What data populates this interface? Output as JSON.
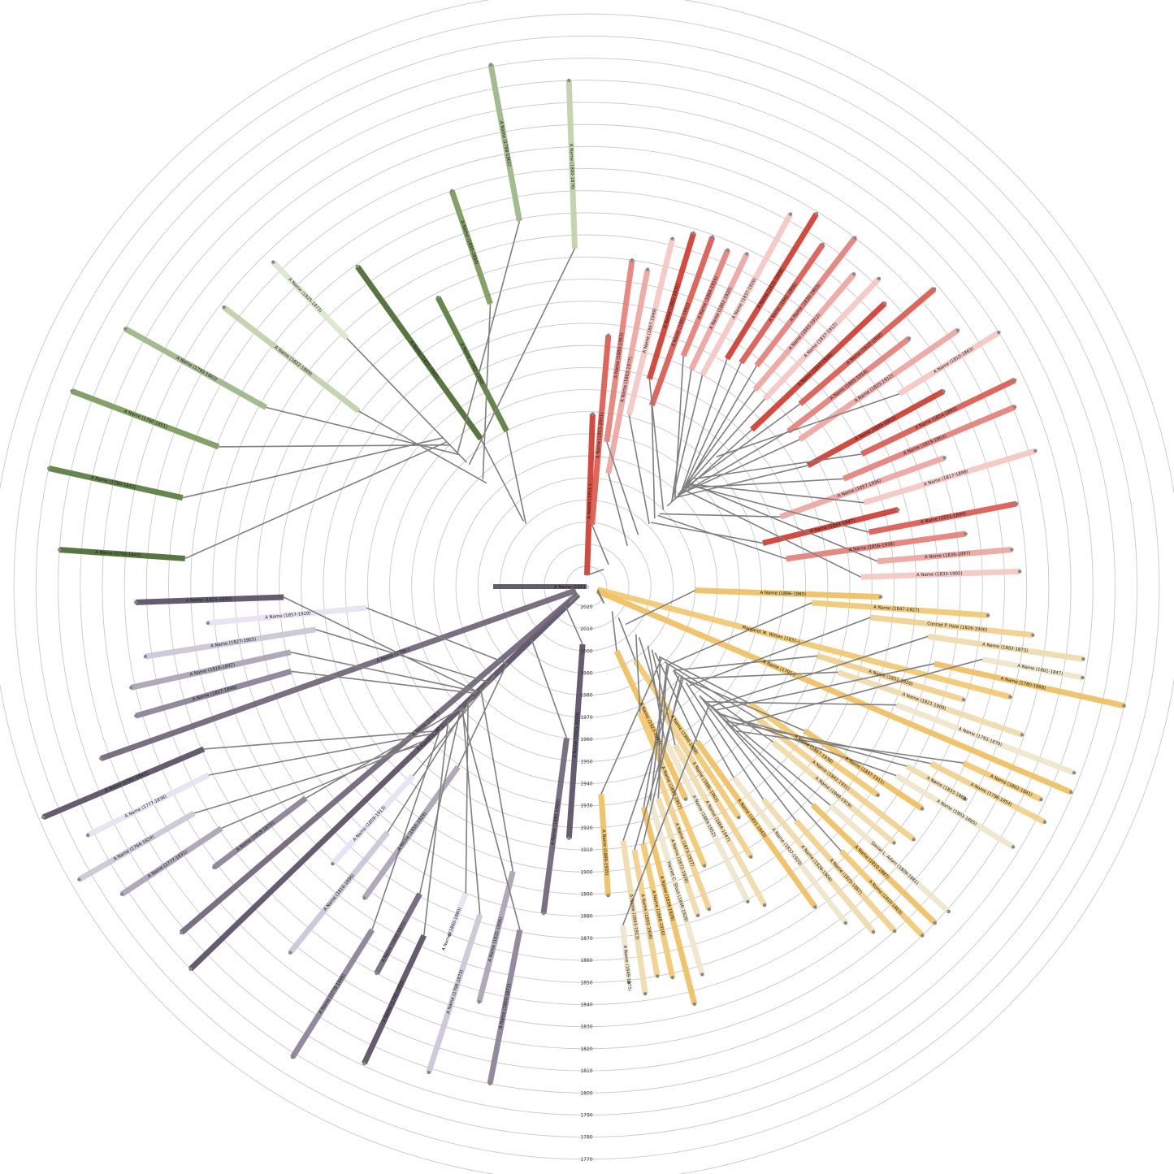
{
  "chart_data": {
    "type": "radial-family-tree",
    "axis": {
      "years": [
        2020,
        2010,
        2000,
        1990,
        1980,
        1970,
        1960,
        1950,
        1940,
        1930,
        1920,
        1910,
        1900,
        1890,
        1880,
        1870,
        1860,
        1850,
        1840,
        1830,
        1820,
        1810,
        1800,
        1790,
        1780,
        1770,
        1760
      ],
      "label_direction": "down"
    },
    "root": {
      "name": "A Name (1951-)",
      "color": "#5a4f63",
      "born": 1951
    },
    "clusters": [
      {
        "name": "red",
        "colors": [
          "#d23b2e",
          "#dc5a50",
          "#e57f78",
          "#eea5a0",
          "#f5c6c3"
        ],
        "people": [
          {
            "label": "A Name (1951-)",
            "born": 1951,
            "died": null
          },
          {
            "label": "A Name (1915-2001)",
            "born": 1915,
            "died": 2001
          },
          {
            "label": "A Name (1880-1963)",
            "born": 1880,
            "died": 1963
          },
          {
            "label": "A Name (1883-1977)",
            "born": 1883,
            "died": 1977
          },
          {
            "label": "A Name (1867-1949)",
            "born": 1867,
            "died": 1949
          },
          {
            "label": "A Name (1862-1931)",
            "born": 1862,
            "died": 1931
          },
          {
            "label": "A Name (1861-1942)",
            "born": 1861,
            "died": 1942
          },
          {
            "label": "A Name (1864-1916)",
            "born": 1864,
            "died": 1916
          },
          {
            "label": "A Name (1862-1920)",
            "born": 1862,
            "died": 1920
          },
          {
            "label": "A Name (1837-1920)",
            "born": 1837,
            "died": 1920
          },
          {
            "label": "A Name (1831-1908)",
            "born": 1831,
            "died": 1908
          },
          {
            "label": "A Name (1841-1906)",
            "born": 1841,
            "died": 1906
          },
          {
            "label": "A Name (1830-1903)",
            "born": 1830,
            "died": 1903
          },
          {
            "label": "A Name (1843-1912)",
            "born": 1843,
            "died": 1912
          },
          {
            "label": "A Name (1837-1912)",
            "born": 1837,
            "died": 1912
          },
          {
            "label": "A Name (1843-1926)",
            "born": 1843,
            "died": 1926
          },
          {
            "label": "A Name (1822-1902)",
            "born": 1822,
            "died": 1902
          },
          {
            "label": "A Name (1845-1914)",
            "born": 1845,
            "died": 1914
          },
          {
            "label": "A Name (1825-1912)",
            "born": 1825,
            "died": 1912
          },
          {
            "label": "A Name (1810-1863)",
            "born": 1810,
            "died": 1863
          },
          {
            "label": "A Name (1845-1915)",
            "born": 1845,
            "died": 1915
          },
          {
            "label": "A Name (1814-1891)",
            "born": 1814,
            "died": 1891
          },
          {
            "label": "A Name (1819-1903)",
            "born": 1819,
            "died": 1903
          },
          {
            "label": "A Name (1857-1936)",
            "born": 1857,
            "died": 1936
          },
          {
            "label": "A Name (1817-1898)",
            "born": 1817,
            "died": 1898
          },
          {
            "label": "A Name (1884-1947)",
            "born": 1884,
            "died": 1947
          },
          {
            "label": "A Name (1831-1899)",
            "born": 1831,
            "died": 1899
          },
          {
            "label": "A Name (1856-1938)",
            "born": 1856,
            "died": 1938
          },
          {
            "label": "A Name (1836-1897)",
            "born": 1836,
            "died": 1897
          },
          {
            "label": "A Name (1833-1905)",
            "born": 1833,
            "died": 1905
          }
        ]
      },
      {
        "name": "yellow",
        "colors": [
          "#f0c060",
          "#f2c86f",
          "#f3d08a",
          "#f0dcaa",
          "#efe6cc"
        ],
        "people": [
          {
            "label": "A Name (1896-1980)",
            "born": 1896,
            "died": 1980
          },
          {
            "label": "A Name (1847-1927)",
            "born": 1847,
            "died": 1927
          },
          {
            "label": "Conrad P. Hale (1826-1900)",
            "born": 1826,
            "died": 1900
          },
          {
            "label": "A Name (1802-1873)",
            "born": 1802,
            "died": 1873
          },
          {
            "label": "A Name (1801-1847)",
            "born": 1801,
            "died": 1847
          },
          {
            "label": "A Name (1780-1868)",
            "born": 1780,
            "died": 1868
          },
          {
            "label": "Margaret M. Witten (1831-)",
            "born": 1831,
            "died": null
          },
          {
            "label": "A Name (1851-1920)",
            "born": 1851,
            "died": 1920
          },
          {
            "label": "A Name (1821-1909)",
            "born": 1821,
            "died": 1909
          },
          {
            "label": "A Name (1793-1879)",
            "born": 1793,
            "died": 1879
          },
          {
            "label": "A Name (1791-)",
            "born": 1791,
            "died": null
          },
          {
            "label": "A Name (1802-1841)",
            "born": 1802,
            "died": 1841
          },
          {
            "label": "A Name (1796-1854)",
            "born": 1796,
            "died": 1854
          },
          {
            "label": "A Name (1833-1863)",
            "born": 1833,
            "died": 1863
          },
          {
            "label": "A Name (1803-1865)",
            "born": 1803,
            "died": 1865
          },
          {
            "label": "A Name (1847-1911)",
            "born": 1847,
            "died": 1911
          },
          {
            "label": "A Name (1867-1938)",
            "born": 1867,
            "died": 1938
          },
          {
            "label": "A Name (1842-1931)",
            "born": 1842,
            "died": 1931
          },
          {
            "label": "A Name (1848-1919)",
            "born": 1848,
            "died": 1919
          },
          {
            "label": "Daniel L. Adam (1809-1881)",
            "born": 1809,
            "died": 1881
          },
          {
            "label": "A Name (1810-1887)",
            "born": 1810,
            "died": 1887
          },
          {
            "label": "A Name (1810-1863)",
            "born": 1810,
            "died": 1863
          },
          {
            "label": "A Name (1820-1887)",
            "born": 1820,
            "died": 1887
          },
          {
            "label": "A Name (1826-1904)",
            "born": 1826,
            "died": 1904
          },
          {
            "label": "A Name (1837-1920)",
            "born": 1837,
            "died": 1920
          },
          {
            "label": "A Name (1851-1943)",
            "born": 1851,
            "died": 1943
          },
          {
            "label": "A Name (1904-1989)",
            "born": 1904,
            "died": 1989
          },
          {
            "label": "A Name (1886-1963)",
            "born": 1886,
            "died": 1963
          },
          {
            "label": "A Name (1864-1947)",
            "born": 1864,
            "died": 1947
          },
          {
            "label": "A Name (1869-1952)",
            "born": 1869,
            "died": 1952
          },
          {
            "label": "A Name (1923-1997)",
            "born": 1923,
            "died": 1997
          },
          {
            "label": "A Name (1892-1967)",
            "born": 1892,
            "died": 1967
          },
          {
            "label": "A Name (1873-1937)",
            "born": 1873,
            "died": 1937
          },
          {
            "label": "A Name (1872-1928)",
            "born": 1872,
            "died": 1928
          },
          {
            "label": "Harriet C. Stout (1846-1928)",
            "born": 1846,
            "died": 1928
          },
          {
            "label": "A Name (1834-1926)",
            "born": 1834,
            "died": 1926
          },
          {
            "label": "A Name (1848-1910)",
            "born": 1848,
            "died": 1910
          },
          {
            "label": "A Name (1850-1908)",
            "born": 1850,
            "died": 1908
          },
          {
            "label": "A Name (1843-1913)",
            "born": 1843,
            "died": 1913
          },
          {
            "label": "A Name (1849-1875)",
            "born": 1849,
            "died": 1875
          },
          {
            "label": "A Name (1889-1935)",
            "born": 1889,
            "died": 1935
          }
        ]
      },
      {
        "name": "purple",
        "colors": [
          "#5a4f63",
          "#6f6478",
          "#8b8196",
          "#aba2b5",
          "#ccc5d6",
          "#e8e2f2"
        ],
        "people": [
          {
            "label": "A Name (1915-2003)",
            "born": 1915,
            "died": 2003
          },
          {
            "label": "A Name (1880-1960)",
            "born": 1880,
            "died": 1960
          },
          {
            "label": "A Name (1800-1871)",
            "born": 1800,
            "died": 1871
          },
          {
            "label": "A Name (1835-1896)",
            "born": 1835,
            "died": 1896
          },
          {
            "label": "A Name (1798-1873)",
            "born": 1798,
            "died": 1873
          },
          {
            "label": "A Name (1860-1880)",
            "born": 1860,
            "died": 1880
          },
          {
            "label": "A Name (1791-1855)",
            "born": 1791,
            "died": 1855
          },
          {
            "label": "A Name (1830-1871)",
            "born": 1830,
            "died": 1871
          },
          {
            "label": "A Name (1778-1846)",
            "born": 1778,
            "died": 1846
          },
          {
            "label": "A Name (1856-1929)",
            "born": 1856,
            "died": 1929
          },
          {
            "label": "A Name (1816-1886)",
            "born": 1816,
            "died": 1886
          },
          {
            "label": "A Name (1859-1913)",
            "born": 1859,
            "died": 1913
          },
          {
            "label": "A Name (1780-)",
            "born": 1780,
            "died": null
          },
          {
            "label": "A Name (1788-)",
            "born": 1788,
            "died": null
          },
          {
            "label": "A Name (1818-1870)",
            "born": 1818,
            "died": 1870
          },
          {
            "label": "A Name (1777-1831)",
            "born": 1777,
            "died": 1831
          },
          {
            "label": "A Name (1764-1824)",
            "born": 1764,
            "died": 1824
          },
          {
            "label": "A Name (1777-1838)",
            "born": 1777,
            "died": 1838
          },
          {
            "label": "A Name (1762-1841)",
            "born": 1762,
            "died": 1841
          },
          {
            "label": "A Name (1796-)",
            "born": 1796,
            "died": null
          },
          {
            "label": "A Name (1817-1890)",
            "born": 1817,
            "died": 1890
          },
          {
            "label": "A Name (1818-1892)",
            "born": 1818,
            "died": 1892
          },
          {
            "label": "A Name (1827-1905)",
            "born": 1827,
            "died": 1905
          },
          {
            "label": "A Name (1857-1929)",
            "born": 1857,
            "died": 1929
          },
          {
            "label": "A Name (1825-1892)",
            "born": 1825,
            "died": 1892
          }
        ]
      },
      {
        "name": "green",
        "colors": [
          "#4a6b2f",
          "#5a7d3c",
          "#7a9a5c",
          "#9db586",
          "#bfd1a9",
          "#dbe7cd"
        ],
        "people": [
          {
            "label": "A Name (1790-1847)",
            "born": 1790,
            "died": 1847
          },
          {
            "label": "A Name (1780-1842)",
            "born": 1780,
            "died": 1842
          },
          {
            "label": "A Name (1780-1851)",
            "born": 1780,
            "died": 1851
          },
          {
            "label": "A Name (1790-1863)",
            "born": 1790,
            "died": 1863
          },
          {
            "label": "A Name (1822-1899)",
            "born": 1822,
            "died": 1899
          },
          {
            "label": "A Name (1825-1873)",
            "born": 1825,
            "died": 1873
          },
          {
            "label": "A Name (1851-1947)",
            "born": 1851,
            "died": 1947
          },
          {
            "label": "A Name (1882-1950)",
            "born": 1882,
            "died": 1950
          },
          {
            "label": "A Name (1840-1894)",
            "born": 1840,
            "died": 1894
          },
          {
            "label": "A Name (1789-1861)",
            "born": 1789,
            "died": 1861
          },
          {
            "label": "A Name (1800-1876)",
            "born": 1800,
            "died": 1876
          }
        ]
      }
    ]
  }
}
